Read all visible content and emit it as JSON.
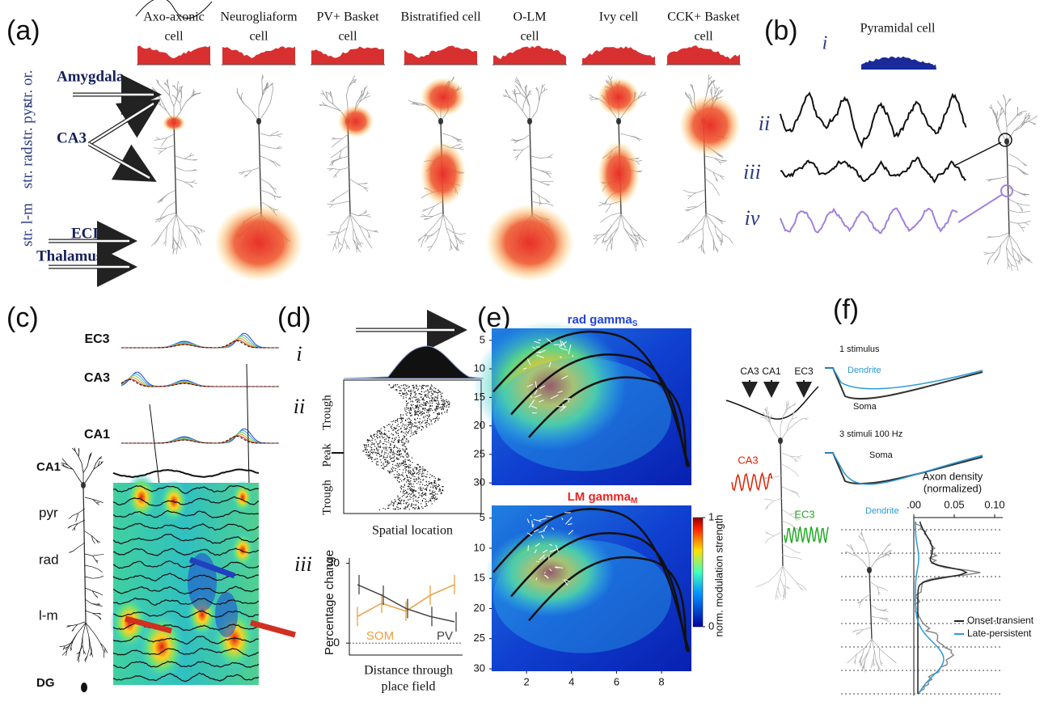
{
  "panels": {
    "a": {
      "label": "(a)",
      "cells": [
        [
          "Axo-axonic",
          "cell"
        ],
        [
          "Neurogliaform",
          "cell"
        ],
        [
          "PV+ Basket",
          "cell"
        ],
        [
          "Bistratified cell"
        ],
        [
          "O-LM",
          "cell"
        ],
        [
          "Ivy cell"
        ],
        [
          "CCK+ Basket",
          "cell"
        ]
      ],
      "layers": [
        "str. or.",
        "str. pyr.",
        "str. rad.",
        "str. l-m"
      ],
      "inputs": [
        "Amygdala",
        "CA3",
        "ECIII",
        "Thalamus"
      ]
    },
    "b": {
      "label": "(b)",
      "title": "Pyramidal cell",
      "traces": [
        "i",
        "ii",
        "iii",
        "iv"
      ]
    },
    "c": {
      "label": "(c)",
      "rows": [
        "EC3",
        "CA3",
        "CA1"
      ],
      "layers": [
        "CA1",
        "pyr",
        "rad",
        "l-m",
        "DG"
      ]
    },
    "d": {
      "label": "(d)",
      "subpanels": [
        "i",
        "ii",
        "iii"
      ],
      "raster_labels": [
        "Trough",
        "Peak",
        "Trough"
      ],
      "x_label": "Spatial location",
      "chart": {
        "type": "line",
        "y_label": "Percentage change",
        "x_label": [
          "Distance through",
          "place field"
        ],
        "categories": [
          null,
          null,
          null,
          null,
          null
        ],
        "ylim": [
          -4.5,
          32
        ],
        "yticks": [
          0,
          30
        ],
        "series": [
          {
            "name": "SOM",
            "color": "#e8a040",
            "values": [
              10,
              15,
              12,
              18,
              22
            ]
          },
          {
            "name": "PV",
            "color": "#444444",
            "values": [
              22,
              18,
              13,
              10,
              8
            ]
          }
        ]
      }
    },
    "e": {
      "label": "(e)",
      "maps": [
        {
          "title": "rad gamma",
          "sub": "S",
          "color": "#2244dd"
        },
        {
          "title": "LM gamma",
          "sub": "M",
          "color": "#ee2222"
        }
      ],
      "ylim": [
        2.9,
        30.4
      ],
      "yticks": [
        5,
        10,
        15,
        20,
        25,
        30
      ],
      "xlim": [
        0.45,
        9.33
      ],
      "xticks": [
        2,
        4,
        6,
        8
      ],
      "colorbar": {
        "label": "norm. modulation strength",
        "lim": [
          0,
          1
        ],
        "ticks": [
          0,
          1
        ]
      }
    },
    "f": {
      "label": "(f)",
      "inputs": [
        "CA3",
        "CA1",
        "EC3"
      ],
      "osc": [
        {
          "name": "CA3",
          "color": "#dd2200"
        },
        {
          "name": "EC3",
          "color": "#22aa22"
        }
      ],
      "insets": [
        {
          "title": "1 stimulus",
          "dendrite": "Dendrite",
          "soma": "Soma"
        },
        {
          "title": "3 stimuli 100 Hz",
          "dendrite": "Dendrite",
          "soma": "Soma"
        }
      ],
      "density": {
        "title": [
          "Axon density",
          "(normalized)"
        ],
        "xlim": [
          0,
          0.1
        ],
        "xticks": [
          {
            "value": 0,
            "label": ".00"
          },
          0.05,
          {
            "value": 0.1,
            "label": "0.10"
          }
        ],
        "legend": [
          {
            "name": "Onset-transient",
            "color": "#222222"
          },
          {
            "name": "Late-persistent",
            "color": "#2a9ad8"
          }
        ]
      }
    }
  }
}
